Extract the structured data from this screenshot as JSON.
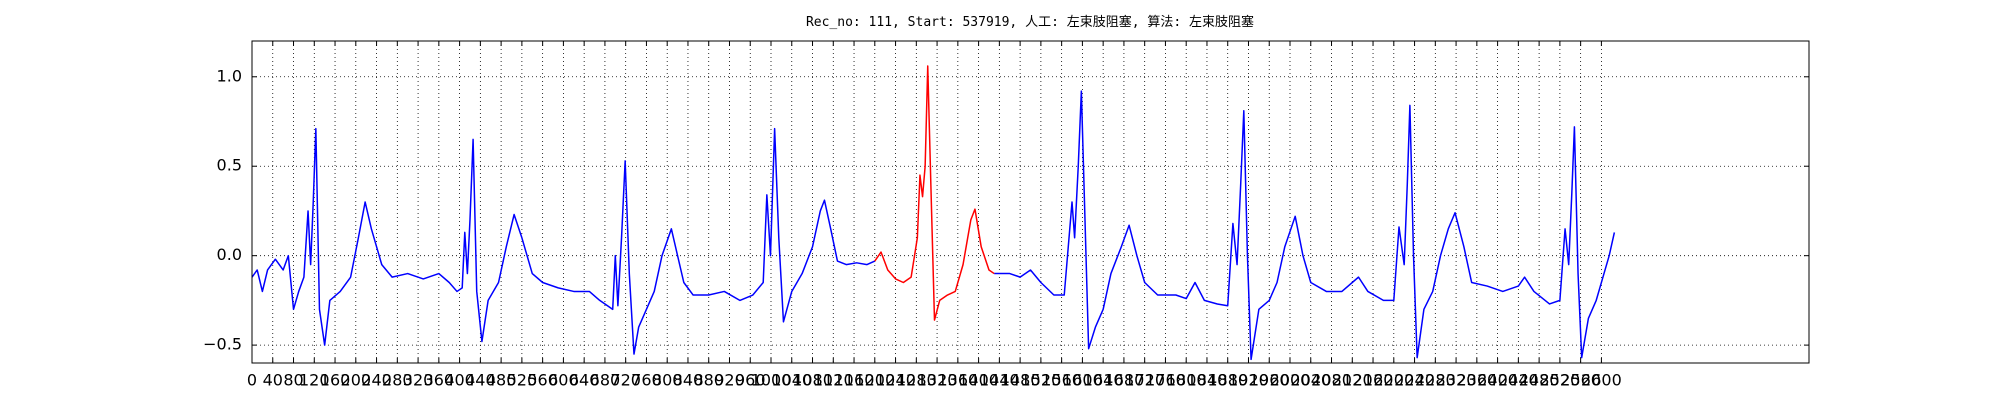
{
  "chart_data": {
    "type": "line",
    "title": "Rec_no: 111, Start: 537919, 人工: 左束肢阻塞, 算法: 左束肢阻塞",
    "xlim": [
      0,
      3000
    ],
    "ylim": [
      -0.6,
      1.2
    ],
    "xticks": [
      0,
      40,
      80,
      120,
      160,
      200,
      240,
      280,
      320,
      360,
      400,
      440,
      480,
      520,
      560,
      600,
      640,
      680,
      720,
      760,
      800,
      840,
      880,
      920,
      960,
      1000,
      1040,
      1080,
      1120,
      1160,
      1200,
      1240,
      1280,
      1320,
      1360,
      1400,
      1440,
      1480,
      1520,
      1560,
      1600,
      1640,
      1680,
      1720,
      1760,
      1800,
      1840,
      1880,
      1920,
      1960,
      2000,
      2040,
      2080,
      2120,
      2160,
      2200,
      2240,
      2280,
      2320,
      2360,
      2400,
      2440,
      2480,
      2520,
      2560,
      2600
    ],
    "yticks": [
      {
        "value": -0.5,
        "label": "−0.5"
      },
      {
        "value": 0,
        "label": "0.0"
      },
      0.5,
      {
        "value": 1,
        "label": "1.0"
      }
    ],
    "grid": true,
    "series": [
      {
        "color": "#0000ff",
        "x": [
          0,
          10,
          20,
          30,
          45,
          60,
          70,
          80,
          90,
          100,
          108,
          113,
          118,
          123,
          130,
          140,
          150,
          170,
          190,
          205,
          218,
          230,
          250,
          270,
          300,
          330,
          360,
          380,
          395,
          405,
          410,
          415,
          420,
          426,
          433,
          443,
          455,
          475,
          490,
          505,
          520,
          540,
          560,
          590,
          620,
          650,
          670,
          685,
          695,
          700,
          705,
          712,
          719,
          727,
          736,
          745,
          760,
          775,
          790,
          808,
          820,
          832,
          850,
          880,
          910,
          940,
          965,
          985,
          992,
          999,
          1007,
          1015,
          1024,
          1040,
          1060,
          1080,
          1095,
          1103,
          1115,
          1128,
          1145,
          1165,
          1185,
          1200,
          1315,
          1430,
          1460,
          1480,
          1500,
          1520,
          1545,
          1565,
          1580,
          1585,
          1592,
          1598,
          1605,
          1612,
          1625,
          1640,
          1655,
          1675,
          1690,
          1705,
          1720,
          1745,
          1780,
          1800,
          1817,
          1835,
          1860,
          1880,
          1890,
          1898,
          1905,
          1911,
          1918,
          1925,
          1940,
          1960,
          1975,
          1990,
          2010,
          2025,
          2040,
          2070,
          2100,
          2132,
          2150,
          2180,
          2200,
          2210,
          2220,
          2226,
          2231,
          2238,
          2245,
          2258,
          2275,
          2290,
          2305,
          2318,
          2335,
          2350,
          2380,
          2410,
          2440,
          2452,
          2470,
          2500,
          2520,
          2530,
          2537,
          2543,
          2548,
          2555,
          2562,
          2575,
          2590,
          2605,
          2615,
          2625
        ],
        "values": [
          -0.12,
          -0.08,
          -0.2,
          -0.08,
          -0.02,
          -0.08,
          0.0,
          -0.3,
          -0.2,
          -0.12,
          0.25,
          -0.05,
          0.3,
          0.71,
          -0.3,
          -0.5,
          -0.25,
          -0.2,
          -0.12,
          0.1,
          0.3,
          0.15,
          -0.05,
          -0.12,
          -0.1,
          -0.13,
          -0.1,
          -0.15,
          -0.2,
          -0.18,
          0.13,
          -0.1,
          0.2,
          0.65,
          -0.2,
          -0.48,
          -0.25,
          -0.15,
          0.05,
          0.23,
          0.1,
          -0.1,
          -0.15,
          -0.18,
          -0.2,
          -0.2,
          -0.25,
          -0.28,
          -0.3,
          0.0,
          -0.28,
          0.1,
          0.53,
          -0.1,
          -0.55,
          -0.4,
          -0.3,
          -0.2,
          0.0,
          0.15,
          0.0,
          -0.15,
          -0.22,
          -0.22,
          -0.2,
          -0.25,
          -0.22,
          -0.15,
          0.34,
          0.0,
          0.71,
          0.1,
          -0.37,
          -0.2,
          -0.1,
          0.05,
          0.25,
          0.31,
          0.15,
          -0.03,
          -0.05,
          -0.04,
          -0.05,
          -0.03,
          null,
          -0.1,
          -0.1,
          -0.12,
          -0.08,
          -0.15,
          -0.22,
          -0.22,
          0.3,
          0.1,
          0.5,
          0.92,
          0.2,
          -0.52,
          -0.4,
          -0.3,
          -0.1,
          0.05,
          0.17,
          0.0,
          -0.15,
          -0.22,
          -0.22,
          -0.24,
          -0.15,
          -0.25,
          -0.27,
          -0.28,
          0.18,
          -0.05,
          0.4,
          0.81,
          0.0,
          -0.58,
          -0.3,
          -0.25,
          -0.15,
          0.05,
          0.22,
          0.0,
          -0.15,
          -0.2,
          -0.2,
          -0.12,
          -0.2,
          -0.25,
          -0.25,
          0.16,
          -0.05,
          0.4,
          0.84,
          0.0,
          -0.57,
          -0.3,
          -0.2,
          0.0,
          0.15,
          0.24,
          0.05,
          -0.15,
          -0.17,
          -0.2,
          -0.17,
          -0.12,
          -0.2,
          -0.27,
          -0.25,
          0.15,
          -0.05,
          0.35,
          0.72,
          -0.1,
          -0.57,
          -0.35,
          -0.25,
          -0.1,
          0.0,
          0.13
        ]
      },
      {
        "color": "#ff0000",
        "x": [
          1200,
          1212,
          1225,
          1240,
          1255,
          1270,
          1282,
          1287,
          1292,
          1297,
          1302,
          1308,
          1315,
          1325,
          1340,
          1355,
          1370,
          1385,
          1393,
          1405,
          1420,
          1430
        ],
        "values": [
          -0.03,
          0.02,
          -0.08,
          -0.13,
          -0.15,
          -0.12,
          0.1,
          0.45,
          0.33,
          0.5,
          1.06,
          0.4,
          -0.36,
          -0.25,
          -0.22,
          -0.2,
          -0.05,
          0.2,
          0.26,
          0.05,
          -0.08,
          -0.1
        ]
      }
    ]
  }
}
